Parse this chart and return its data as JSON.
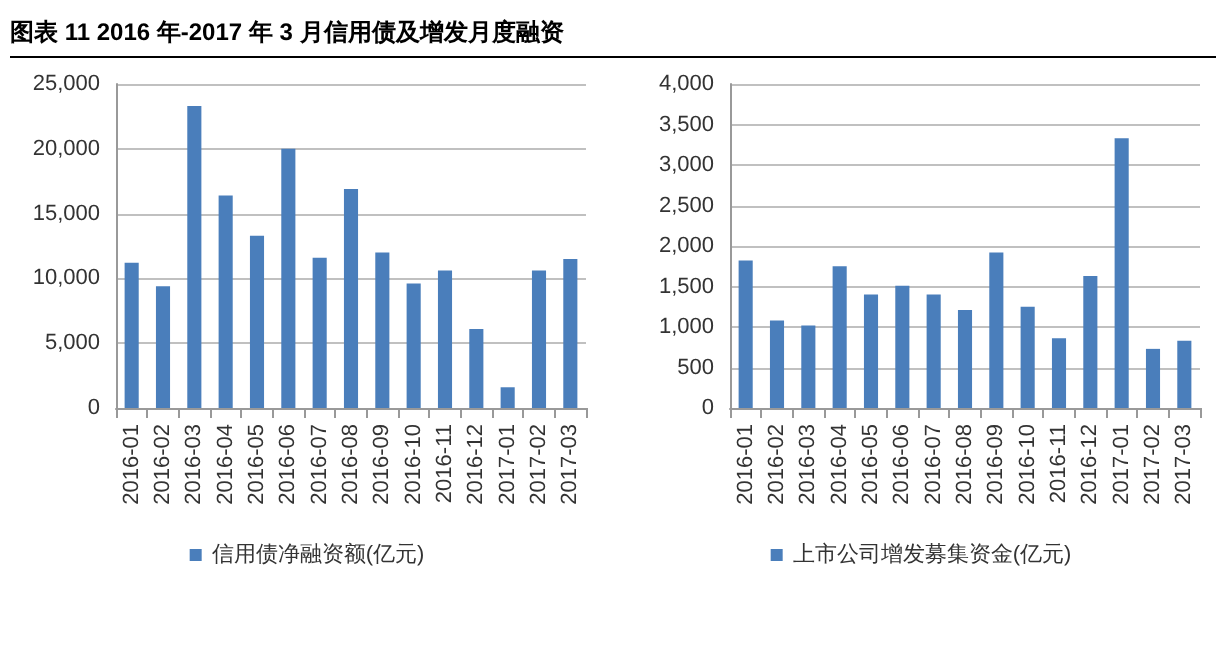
{
  "chart_data": [
    {
      "type": "bar",
      "title": "图表 11 2016 年-2017 年 3 月信用债及增发月度融资",
      "categories": [
        "2016-01",
        "2016-02",
        "2016-03",
        "2016-04",
        "2016-05",
        "2016-06",
        "2016-07",
        "2016-08",
        "2016-09",
        "2016-10",
        "2016-11",
        "2016-12",
        "2017-01",
        "2017-02",
        "2017-03"
      ],
      "series": [
        {
          "name": "信用债净融资额(亿元)",
          "color": "#4a7ebb",
          "values": [
            11200,
            9400,
            23300,
            16400,
            13300,
            20000,
            11600,
            16900,
            12000,
            9600,
            10600,
            6100,
            1600,
            10600,
            11500
          ]
        }
      ],
      "ylim": [
        0,
        25000
      ],
      "yticks": [
        {
          "value": 0,
          "label": "0"
        },
        {
          "value": 5000,
          "label": "5,000"
        },
        {
          "value": 10000,
          "label": "10,000"
        },
        {
          "value": 15000,
          "label": "15,000"
        },
        {
          "value": 20000,
          "label": "20,000"
        },
        {
          "value": 25000,
          "label": "25,000"
        }
      ],
      "grid": "y",
      "legend": "bottom"
    },
    {
      "type": "bar",
      "categories": [
        "2016-01",
        "2016-02",
        "2016-03",
        "2016-04",
        "2016-05",
        "2016-06",
        "2016-07",
        "2016-08",
        "2016-09",
        "2016-10",
        "2016-11",
        "2016-12",
        "2017-01",
        "2017-02",
        "2017-03"
      ],
      "series": [
        {
          "name": "上市公司增发募集资金(亿元)",
          "color": "#4a7ebb",
          "values": [
            1820,
            1080,
            1020,
            1750,
            1400,
            1510,
            1400,
            1210,
            1920,
            1250,
            860,
            1630,
            3330,
            730,
            830
          ]
        }
      ],
      "ylim": [
        0,
        4000
      ],
      "yticks": [
        {
          "value": 0,
          "label": "0"
        },
        {
          "value": 500,
          "label": "500"
        },
        {
          "value": 1000,
          "label": "1,000"
        },
        {
          "value": 1500,
          "label": "1,500"
        },
        {
          "value": 2000,
          "label": "2,000"
        },
        {
          "value": 2500,
          "label": "2,500"
        },
        {
          "value": 3000,
          "label": "3,000"
        },
        {
          "value": 3500,
          "label": "3,500"
        },
        {
          "value": 4000,
          "label": "4,000"
        }
      ],
      "grid": "y",
      "legend": "bottom"
    }
  ]
}
